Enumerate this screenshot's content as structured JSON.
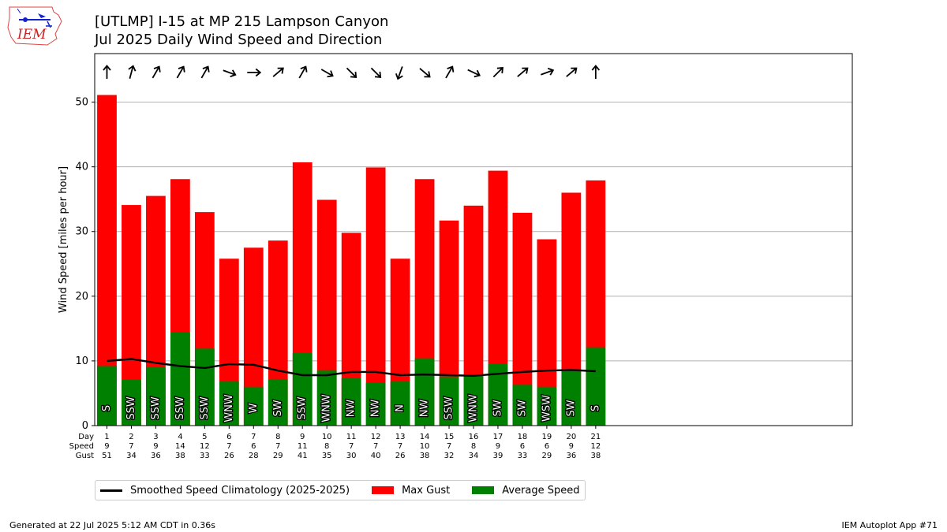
{
  "header": {
    "title": "[UTLMP] I-15 at MP 215 Lampson Canyon",
    "subtitle": "Jul 2025 Daily Wind Speed and Direction",
    "logo_text": "IEM"
  },
  "footer": {
    "generated": "Generated at 22 Jul 2025 5:12 AM CDT in 0.36s",
    "app": "IEM Autoplot App #71"
  },
  "colors": {
    "gust": "#ff0000",
    "speed": "#008000",
    "climatology": "#000000"
  },
  "row_labels": {
    "day": "Day",
    "speed": "Speed",
    "gust": "Gust"
  },
  "chart_data": {
    "type": "bar",
    "ylabel": "Wind Speed [miles per hour]",
    "ylim": [
      0,
      57.5
    ],
    "xlim": [
      0.5,
      31.5
    ],
    "yticks": [
      0,
      10,
      20,
      30,
      40,
      50
    ],
    "grid": true,
    "legend_position": "below chart",
    "days": [
      1,
      2,
      3,
      4,
      5,
      6,
      7,
      8,
      9,
      10,
      11,
      12,
      13,
      14,
      15,
      16,
      17,
      18,
      19,
      20,
      21
    ],
    "speed_labels": [
      "9",
      "7",
      "9",
      "14",
      "12",
      "7",
      "6",
      "7",
      "11",
      "8",
      "7",
      "7",
      "7",
      "10",
      "7",
      "8",
      "9",
      "6",
      "6",
      "9",
      "12"
    ],
    "gust_labels": [
      "51",
      "34",
      "36",
      "38",
      "33",
      "26",
      "28",
      "29",
      "41",
      "35",
      "30",
      "40",
      "26",
      "38",
      "32",
      "34",
      "39",
      "33",
      "29",
      "36",
      "38"
    ],
    "directions": [
      "S",
      "SSW",
      "SSW",
      "SSW",
      "SSW",
      "WNW",
      "W",
      "SW",
      "SSW",
      "WNW",
      "NW",
      "NW",
      "N",
      "NW",
      "SSW",
      "WNW",
      "SW",
      "SW",
      "WSW",
      "SW",
      "S"
    ],
    "arrow_angles": [
      0,
      15,
      30,
      30,
      30,
      110,
      90,
      50,
      30,
      120,
      135,
      135,
      200,
      130,
      30,
      115,
      45,
      50,
      70,
      50,
      0
    ],
    "series": [
      {
        "name": "Max Gust",
        "values": [
          51.1,
          34.1,
          35.5,
          38.1,
          33.0,
          25.8,
          27.5,
          28.6,
          40.7,
          34.9,
          29.8,
          39.9,
          25.8,
          38.1,
          31.7,
          34.0,
          39.4,
          32.9,
          28.8,
          36.0,
          37.9
        ]
      },
      {
        "name": "Average Speed",
        "values": [
          9.2,
          7.1,
          9.0,
          14.4,
          11.9,
          6.8,
          6.0,
          7.2,
          11.2,
          8.5,
          7.3,
          6.6,
          6.8,
          10.4,
          7.5,
          7.8,
          9.5,
          6.3,
          6.0,
          8.7,
          12.1
        ]
      },
      {
        "name": "Smoothed Speed Climatology (2025-2025)",
        "values": [
          10.0,
          10.3,
          9.7,
          9.2,
          8.9,
          9.5,
          9.4,
          8.5,
          7.8,
          7.8,
          8.3,
          8.3,
          7.8,
          7.9,
          7.8,
          7.7,
          8.0,
          8.3,
          8.5,
          8.6,
          8.4
        ]
      }
    ]
  }
}
